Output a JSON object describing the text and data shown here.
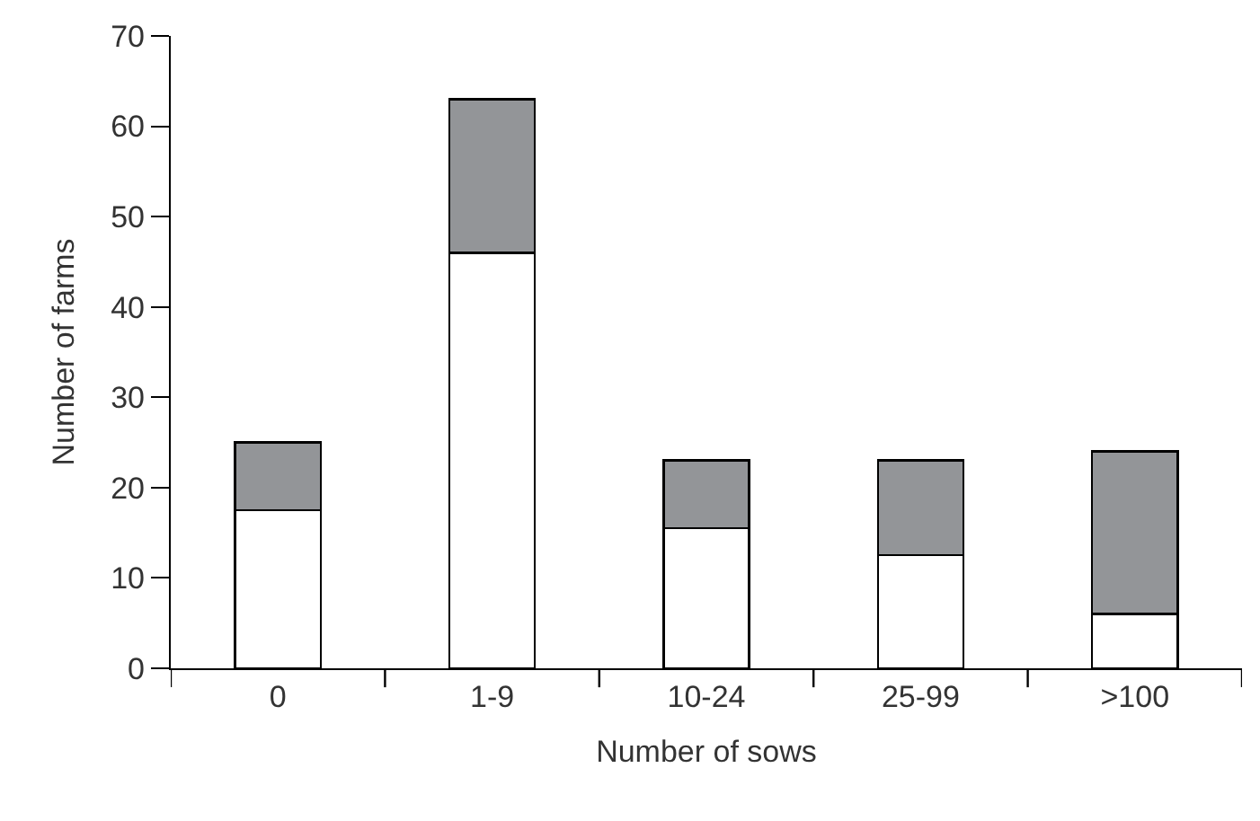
{
  "chart_data": {
    "type": "bar",
    "stacked": true,
    "xlabel": "Number of sows",
    "ylabel": "Number of farms",
    "categories": [
      "0",
      "1-9",
      "10-24",
      "25-99",
      ">100"
    ],
    "series": [
      {
        "color": "#ffffff",
        "values": [
          17.5,
          46,
          15.5,
          12.5,
          6
        ]
      },
      {
        "color": "#939598",
        "values": [
          7.5,
          17,
          7.5,
          10.5,
          18
        ]
      }
    ],
    "ylim": [
      0,
      70
    ],
    "yticks": [
      0,
      10,
      20,
      30,
      40,
      50,
      60,
      70
    ]
  }
}
